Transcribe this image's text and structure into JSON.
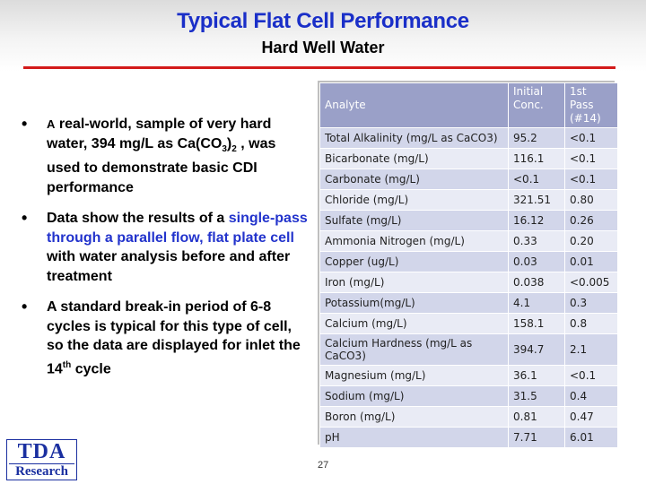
{
  "header": {
    "title": "Typical Flat Cell Performance",
    "subtitle": "Hard Well Water"
  },
  "bullets": [
    {
      "part1": "A",
      "part2": " real-world, sample of very hard water, 394 mg/L as Ca(CO",
      "sub1": "3",
      "part3": ")",
      "sub2": "2",
      "part4": " , was used to demonstrate basic CDI performance"
    },
    {
      "part1": "Data show the results of a ",
      "blue1": "single-pass through a parallel flow, flat plate cell",
      "part2": " with water analysis before and after treatment"
    },
    {
      "part1": "A standard break-in period of 6-8 cycles is typical for this type of cell, so the data are displayed for inlet the 14",
      "sup": "th",
      "part2": " cycle"
    }
  ],
  "table": {
    "headers": [
      "Analyte",
      "Initial Conc.",
      "1st Pass (#14)"
    ],
    "rows": [
      [
        "Total Alkalinity (mg/L as CaCO3)",
        "95.2",
        "<0.1"
      ],
      [
        "Bicarbonate (mg/L)",
        "116.1",
        "<0.1"
      ],
      [
        "Carbonate (mg/L)",
        "<0.1",
        "<0.1"
      ],
      [
        "Chloride (mg/L)",
        "321.51",
        "0.80"
      ],
      [
        "Sulfate (mg/L)",
        "16.12",
        "0.26"
      ],
      [
        "Ammonia Nitrogen (mg/L)",
        "0.33",
        "0.20"
      ],
      [
        "Copper (ug/L)",
        "0.03",
        "0.01"
      ],
      [
        "Iron (mg/L)",
        "0.038",
        "<0.005"
      ],
      [
        "Potassium(mg/L)",
        "4.1",
        "0.3"
      ],
      [
        "Calcium (mg/L)",
        "158.1",
        "0.8"
      ],
      [
        "Calcium Hardness (mg/L as CaCO3)",
        "394.7",
        "2.1"
      ],
      [
        "Magnesium (mg/L)",
        "36.1",
        "<0.1"
      ],
      [
        "Sodium (mg/L)",
        "31.5",
        "0.4"
      ],
      [
        "Boron (mg/L)",
        "0.81",
        "0.47"
      ],
      [
        "pH",
        "7.71",
        "6.01"
      ]
    ]
  },
  "page_number": "27",
  "logo": {
    "top": "TDA",
    "bottom": "Research"
  },
  "colors": {
    "title": "#1a2fc8",
    "rule": "#d31a1a",
    "header_fill": "#9aa0c8",
    "highlight": "#2233cc"
  }
}
